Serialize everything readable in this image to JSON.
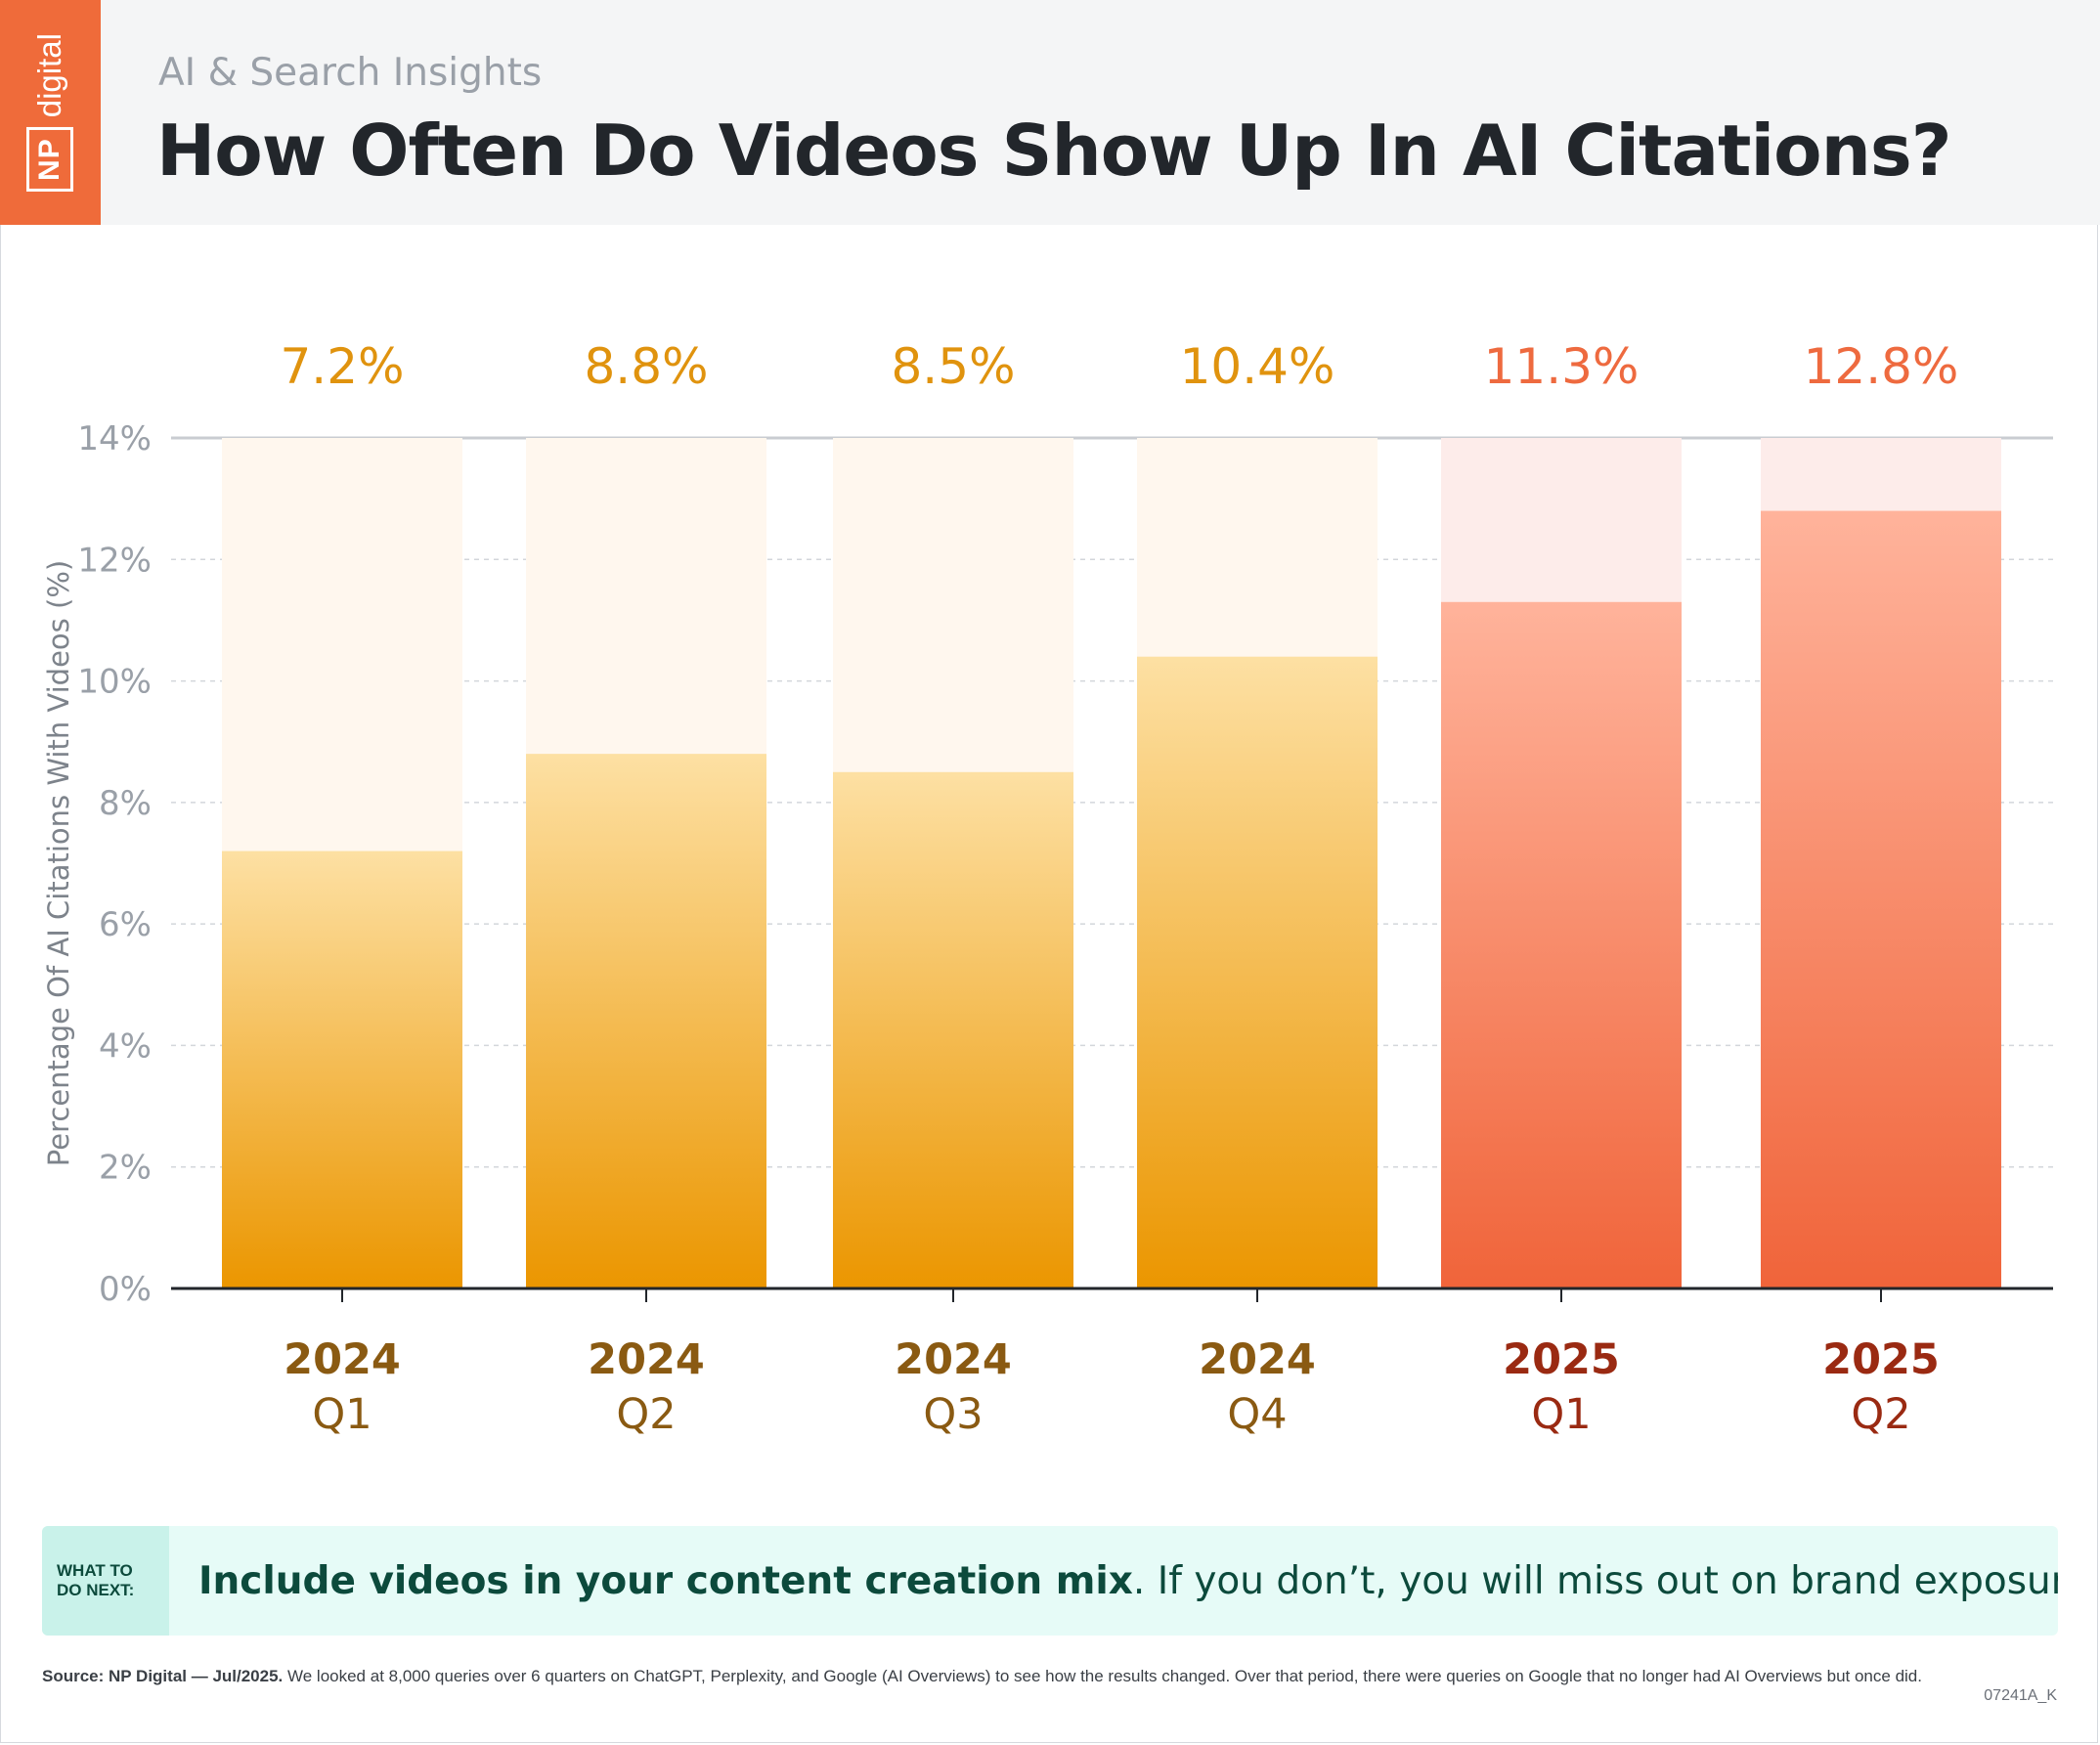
{
  "header": {
    "logo_np": "NP",
    "logo_digital": "digital",
    "subtitle": "AI & Search Insights",
    "title": "How Often Do Videos Show Up In AI Citations?"
  },
  "chart_data": {
    "type": "bar",
    "title": "How Often Do Videos Show Up In AI Citations?",
    "ylabel": "Percentage Of AI Citations With Videos (%)",
    "xlabel": "",
    "ylim": [
      0,
      14
    ],
    "yticks": [
      0,
      2,
      4,
      6,
      8,
      10,
      12,
      14
    ],
    "ytick_labels": [
      "0%",
      "2%",
      "4%",
      "6%",
      "8%",
      "10%",
      "12%",
      "14%"
    ],
    "grid": true,
    "categories": [
      {
        "year": "2024",
        "quarter": "Q1"
      },
      {
        "year": "2024",
        "quarter": "Q2"
      },
      {
        "year": "2024",
        "quarter": "Q3"
      },
      {
        "year": "2024",
        "quarter": "Q4"
      },
      {
        "year": "2025",
        "quarter": "Q1"
      },
      {
        "year": "2025",
        "quarter": "Q2"
      }
    ],
    "values": [
      7.2,
      8.8,
      8.5,
      10.4,
      11.3,
      12.8
    ],
    "value_labels": [
      "7.2%",
      "8.8%",
      "8.5%",
      "10.4%",
      "11.3%",
      "12.8%"
    ],
    "colors": {
      "2024": {
        "top": "#fde0a3",
        "bottom": "#eb9600",
        "track": "#fff7ee",
        "label": "#e0930e",
        "axis_label": "#8a5a12"
      },
      "2025": {
        "top": "#ffb39b",
        "bottom": "#f0643a",
        "track": "#fdecea",
        "label": "#ee6a3f",
        "axis_label": "#9a2a12"
      }
    }
  },
  "cta": {
    "label": "WHAT TO DO NEXT:",
    "strong": "Include videos in your content creation mix",
    "rest": ". If you don’t, you will miss out on brand exposure."
  },
  "footer": {
    "source_bold": "Source: NP Digital — Jul/2025.",
    "note": " We looked at 8,000 queries over 6 quarters on ChatGPT, Perplexity, and Google (AI Overviews) to see how the results changed. Over that period, there were queries on Google that no longer had AI Overviews but once did.",
    "code": "07241A_K"
  }
}
